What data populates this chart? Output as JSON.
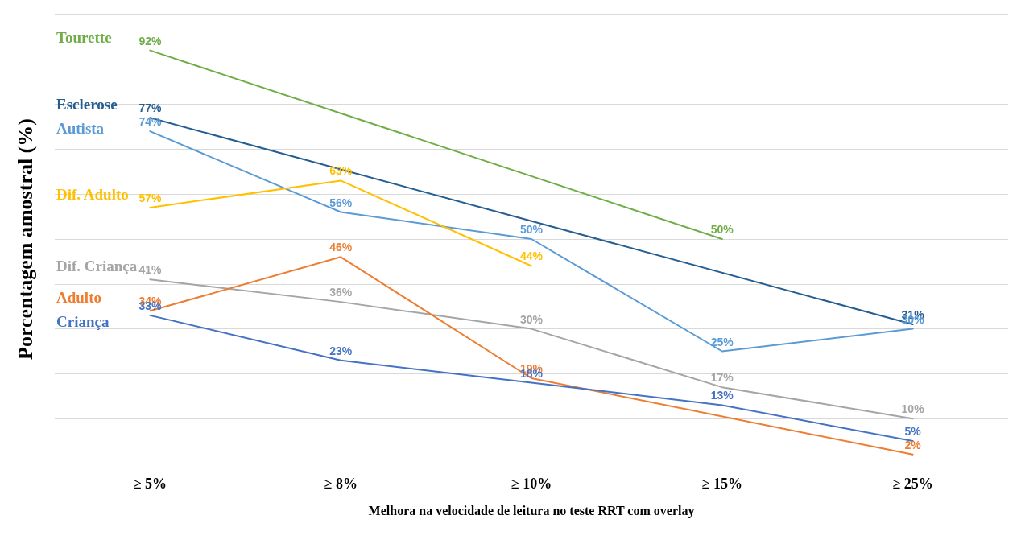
{
  "chart_data": {
    "type": "line",
    "xlabel": "Melhora na velocidade de leitura no teste RRT com overlay",
    "ylabel": "Porcentagem amostral (%)",
    "categories": [
      "≥ 5%",
      "≥ 8%",
      "≥ 10%",
      "≥ 15%",
      "≥ 25%"
    ],
    "series": [
      {
        "name": "Tourette",
        "color": "#70ad47",
        "values": [
          92,
          null,
          null,
          50,
          null
        ],
        "value_labels": [
          "92%",
          null,
          null,
          "50%",
          null
        ]
      },
      {
        "name": "Esclerose",
        "color": "#255e91",
        "values": [
          77,
          null,
          null,
          null,
          31
        ],
        "value_labels": [
          "77%",
          null,
          null,
          null,
          "31%"
        ]
      },
      {
        "name": "Autista",
        "color": "#5b9bd5",
        "values": [
          74,
          56,
          50,
          25,
          30
        ],
        "value_labels": [
          "74%",
          "56%",
          "50%",
          "25%",
          "30%"
        ]
      },
      {
        "name": "Dif. Adulto",
        "color": "#ffc000",
        "values": [
          57,
          63,
          44,
          null,
          null
        ],
        "value_labels": [
          "57%",
          "63%",
          "44%",
          null,
          null
        ]
      },
      {
        "name": "Dif. Criança",
        "color": "#a5a5a5",
        "values": [
          41,
          36,
          30,
          17,
          10
        ],
        "value_labels": [
          "41%",
          "36%",
          "30%",
          "17%",
          "10%"
        ]
      },
      {
        "name": "Adulto",
        "color": "#ed7d31",
        "values": [
          34,
          46,
          19,
          null,
          2
        ],
        "value_labels": [
          "34%",
          "46%",
          "19%",
          null,
          "2%"
        ]
      },
      {
        "name": "Criança",
        "color": "#4472c4",
        "values": [
          33,
          23,
          18,
          13,
          5
        ],
        "value_labels": [
          "33%",
          "23%",
          "18%",
          "13%",
          "5%"
        ]
      }
    ],
    "tick_labels": "x",
    "grid": "y",
    "marker": "none",
    "line_style": "solid"
  }
}
